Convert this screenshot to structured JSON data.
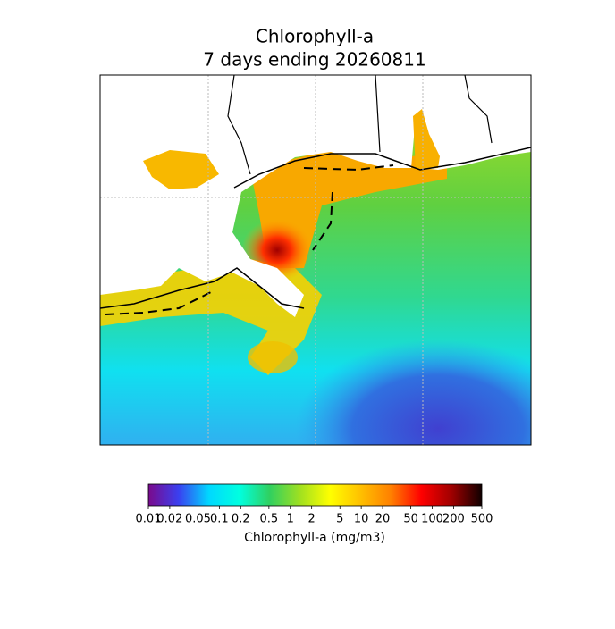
{
  "map": {
    "title": "Chlorophyll-a",
    "subtitle": "7 days ending 20260811"
  },
  "colorbar": {
    "label": "Chlorophyll-a (mg/m3)",
    "scale": "log",
    "lim": [
      0.01,
      500
    ],
    "ticks": [
      0.01,
      0.02,
      0.05,
      0.1,
      0.2,
      0.5,
      1,
      2,
      5,
      10,
      20,
      50,
      100,
      200,
      500
    ],
    "colors": [
      "#7a0a8c",
      "#3a40f0",
      "#00d8ff",
      "#00ffe0",
      "#30d060",
      "#a0e020",
      "#ffff00",
      "#ffc000",
      "#ff8000",
      "#ff0000",
      "#a00000",
      "#100000"
    ]
  }
}
